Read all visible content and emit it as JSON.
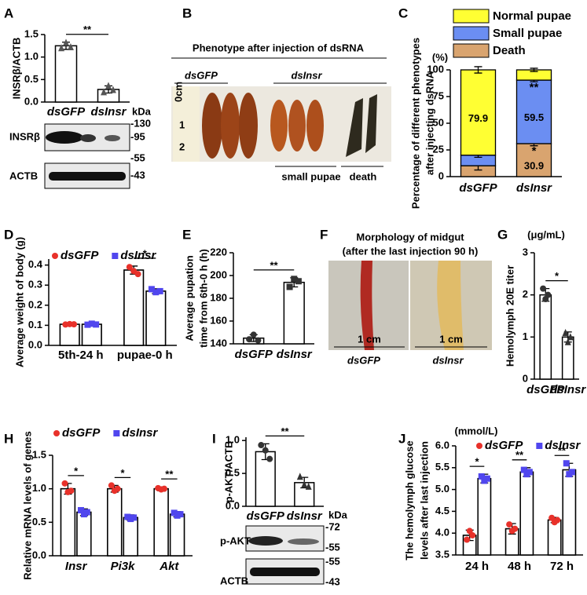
{
  "chart_data": [
    {
      "panel": "A",
      "type": "bar",
      "ylabel": [
        "INSRβ/ACTB"
      ],
      "category_style": "italic",
      "categories": [
        "dsGFP",
        "dsInsr"
      ],
      "values": [
        1.25,
        0.28
      ],
      "errors": [
        0.08,
        0.08
      ],
      "points": [
        [
          1.2,
          1.32,
          1.22
        ],
        [
          0.22,
          0.36,
          0.27
        ]
      ],
      "markers": [
        "triangle",
        "triangle"
      ],
      "point_color": "#555555",
      "color": "#ffffff",
      "ylim": [
        0,
        1.5
      ],
      "yticks": [
        {
          "value": 0,
          "label": "0.0"
        },
        0.5,
        {
          "value": 1,
          "label": "1.0"
        },
        1.5
      ],
      "significance": "**"
    },
    {
      "panel": "C",
      "type": "stacked_bar",
      "ylabel": [
        "Percentage of different phenotypes",
        "after injecting dsRNA"
      ],
      "unit": "(%)",
      "category_style": "italic",
      "categories": [
        "dsGFP",
        "dsInsr"
      ],
      "series": [
        {
          "name": "Death",
          "color": "#d9a46f",
          "values": [
            10.2,
            30.9
          ],
          "errors": [
            4,
            2
          ],
          "value_labels": [
            null,
            "30.9"
          ]
        },
        {
          "name": "Small pupae",
          "color": "#6b8ef2",
          "values": [
            9.9,
            59.5
          ],
          "errors": [
            2,
            1.5
          ],
          "value_labels": [
            null,
            "59.5"
          ]
        },
        {
          "name": "Normal pupae",
          "color": "#ffff33",
          "values": [
            79.9,
            9.6
          ],
          "errors": [
            3,
            1.5
          ],
          "value_labels": [
            "79.9",
            null
          ]
        }
      ],
      "ylim": [
        0,
        100
      ],
      "yticks": [
        0,
        25,
        50,
        75,
        100
      ],
      "significance": [
        [
          null,
          "*"
        ],
        [
          null,
          "**"
        ],
        [
          null,
          null
        ]
      ]
    },
    {
      "panel": "D",
      "type": "bar",
      "ylabel": [
        "Average weight of body (g)"
      ],
      "categories": [
        "5th-24 h",
        "pupae-0 h"
      ],
      "series": [
        {
          "name": "dsGFP",
          "color": "#e8312a",
          "marker": "circle",
          "values": [
            0.105,
            0.375
          ],
          "errors": [
            0.005,
            0.02
          ],
          "points": [
            [
              0.104,
              0.106,
              0.105
            ],
            [
              0.39,
              0.37,
              0.355
            ]
          ]
        },
        {
          "name": "dsInsr",
          "color": "#5046ee",
          "marker": "square",
          "values": [
            0.105,
            0.27
          ],
          "errors": [
            0.005,
            0.012
          ],
          "points": [
            [
              0.103,
              0.108,
              0.104
            ],
            [
              0.28,
              0.265,
              0.27
            ]
          ]
        }
      ],
      "ylim": [
        0,
        0.43
      ],
      "yticks": [
        {
          "value": 0,
          "label": "0.0"
        },
        0.1,
        0.2,
        0.3,
        0.4
      ],
      "significance": [
        null,
        "*"
      ]
    },
    {
      "panel": "E",
      "type": "bar",
      "ylabel": [
        "Average pupation",
        "time from 6th-0 h (h)"
      ],
      "category_style": "italic",
      "categories": [
        "dsGFP",
        "dsInsr"
      ],
      "values": [
        145,
        194
      ],
      "errors": [
        3,
        4
      ],
      "points": [
        [
          144,
          148,
          143
        ],
        [
          190,
          197,
          195
        ]
      ],
      "markers": [
        "circle",
        "square"
      ],
      "point_color": "#333333",
      "color": "#ffffff",
      "ylim": [
        140,
        220
      ],
      "yticks": [
        140,
        160,
        180,
        200,
        220
      ],
      "significance": "**"
    },
    {
      "panel": "G",
      "type": "bar",
      "ylabel": [
        "Hemolymph 20E titer"
      ],
      "unit": "(μg/mL)",
      "category_style": "italic",
      "categories": [
        "dsGFP",
        "dsInsr"
      ],
      "values": [
        2.0,
        1.0
      ],
      "errors": [
        0.15,
        0.12
      ],
      "points": [
        [
          2.15,
          1.9,
          2.0
        ],
        [
          1.1,
          0.88,
          1.0
        ]
      ],
      "markers": [
        "circle",
        "triangle"
      ],
      "point_color": "#333333",
      "color": "#ffffff",
      "ylim": [
        0,
        3
      ],
      "yticks": [
        0,
        1,
        2,
        3
      ],
      "significance": "*"
    },
    {
      "panel": "H",
      "type": "bar",
      "ylabel": [
        "Relative mRNA levels of genes"
      ],
      "category_style": "italic",
      "categories": [
        "Insr",
        "Pi3k",
        "Akt"
      ],
      "series": [
        {
          "name": "dsGFP",
          "color": "#e8312a",
          "marker": "circle",
          "values": [
            1.0,
            1.0,
            1.0
          ],
          "errors": [
            0.08,
            0.05,
            0.03
          ],
          "points": [
            [
              1.08,
              0.95,
              0.97
            ],
            [
              1.05,
              0.97,
              1.0
            ],
            [
              1.01,
              0.99,
              1.0
            ]
          ]
        },
        {
          "name": "dsInsr",
          "color": "#5046ee",
          "marker": "square",
          "values": [
            0.65,
            0.57,
            0.62
          ],
          "errors": [
            0.05,
            0.04,
            0.04
          ],
          "points": [
            [
              0.68,
              0.62,
              0.65
            ],
            [
              0.58,
              0.55,
              0.57
            ],
            [
              0.64,
              0.6,
              0.62
            ]
          ]
        }
      ],
      "ylim": [
        0,
        1.5
      ],
      "yticks": [
        {
          "value": 0,
          "label": "0.0"
        },
        0.5,
        {
          "value": 1,
          "label": "1.0"
        },
        1.5
      ],
      "significance": [
        "*",
        "*",
        "**"
      ]
    },
    {
      "panel": "I",
      "type": "bar",
      "ylabel": [
        "p-AKT/ACTB"
      ],
      "category_style": "italic",
      "categories": [
        "dsGFP",
        "dsInsr"
      ],
      "values": [
        0.83,
        0.36
      ],
      "errors": [
        0.12,
        0.08
      ],
      "points": [
        [
          0.93,
          0.85,
          0.72
        ],
        [
          0.45,
          0.33,
          0.3
        ]
      ],
      "markers": [
        "circle",
        "triangle"
      ],
      "point_color": "#333333",
      "color": "#ffffff",
      "ylim": [
        0,
        1.05
      ],
      "yticks": [
        {
          "value": 0,
          "label": "0.0"
        },
        0.5,
        {
          "value": 1,
          "label": "1.0"
        }
      ],
      "significance": "**"
    },
    {
      "panel": "J",
      "type": "bar",
      "ylabel": [
        "The hemolymph glucose",
        "levels after last injection"
      ],
      "unit": "(mmol/L)",
      "categories": [
        "24 h",
        "48 h",
        "72 h"
      ],
      "series": [
        {
          "name": "dsGFP",
          "color": "#e8312a",
          "marker": "circle",
          "values": [
            3.95,
            4.1,
            4.3
          ],
          "errors": [
            0.12,
            0.12,
            0.06
          ],
          "points": [
            [
              3.85,
              4.05,
              3.95
            ],
            [
              4.2,
              4.05,
              4.1
            ],
            [
              4.35,
              4.25,
              4.3
            ]
          ]
        },
        {
          "name": "dsInsr",
          "color": "#5046ee",
          "marker": "square",
          "values": [
            5.25,
            5.4,
            5.45
          ],
          "errors": [
            0.1,
            0.1,
            0.15
          ],
          "points": [
            [
              5.3,
              5.2,
              5.25
            ],
            [
              5.45,
              5.35,
              5.4
            ],
            [
              5.6,
              5.35,
              5.4
            ]
          ]
        }
      ],
      "ylim": [
        3.5,
        6.0
      ],
      "yticks": [
        3.5,
        {
          "value": 4,
          "label": "4.0"
        },
        4.5,
        {
          "value": 5,
          "label": "5.0"
        },
        5.5,
        {
          "value": 6,
          "label": "6.0"
        }
      ],
      "significance": [
        "*",
        "**",
        "**"
      ]
    }
  ],
  "blots": [
    {
      "panel": "A",
      "rows": [
        "INSRβ",
        "ACTB"
      ],
      "kda_title": "kDa",
      "markers": [
        "-130",
        "-95",
        "-55",
        "-43"
      ]
    },
    {
      "panel": "I",
      "rows": [
        "p-AKT",
        "ACTB"
      ],
      "kda_title": "kDa",
      "markers": [
        "-72",
        "-55",
        "-55",
        "-43"
      ]
    }
  ],
  "photos": [
    {
      "panel": "B",
      "title": "Phenotype after injection of dsRNA",
      "groups": [
        "dsGFP",
        "dsInsr"
      ],
      "subgroups": [
        "small pupae",
        "death"
      ],
      "ruler": [
        "0cm",
        "1",
        "2"
      ]
    },
    {
      "panel": "F",
      "title": "Morphology of midgut",
      "subtitle": "(after the last injection 90 h)",
      "scale_bars": [
        "1 cm",
        "1 cm"
      ],
      "labels": [
        "dsGFP",
        "dsInsr"
      ]
    }
  ]
}
